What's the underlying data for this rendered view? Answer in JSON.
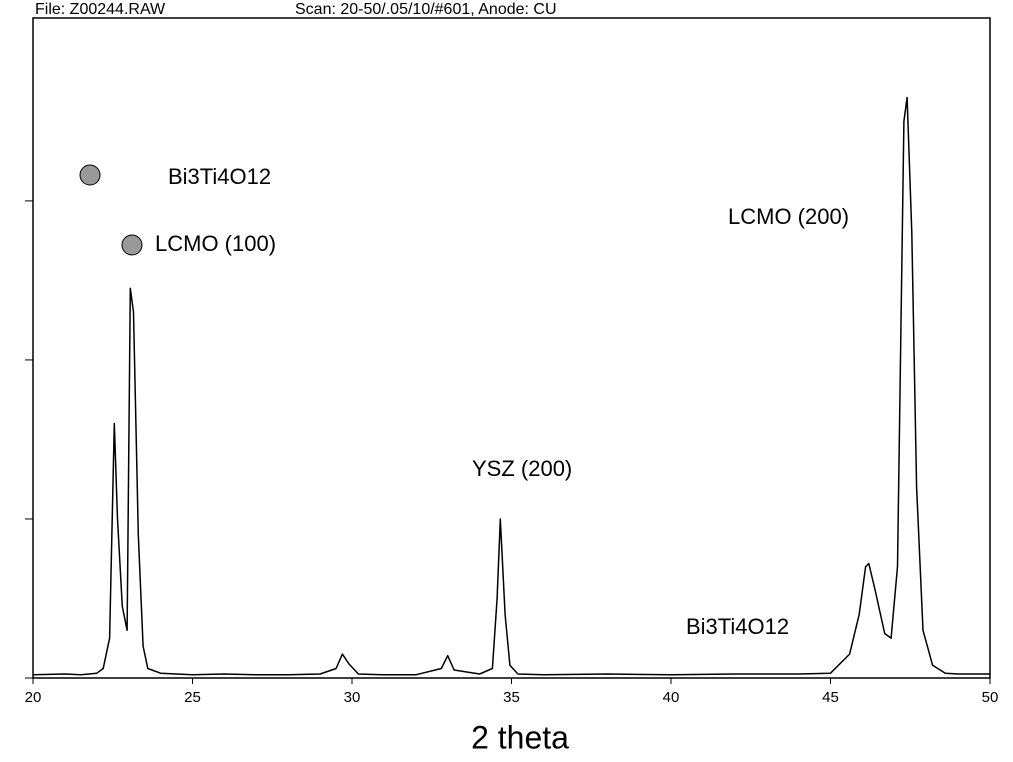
{
  "chart_data": {
    "type": "line",
    "header": [
      "File: Z00244.RAW",
      "Scan: 20-50/.05/10/#601, Anode: CU"
    ],
    "xlabel": "2 theta",
    "annotations": [
      "Bi3Ti4O12",
      "LCMO (100)",
      "LCMO (200)",
      "YSZ (200)",
      "Bi3Ti4O12"
    ],
    "x": [
      20,
      21,
      21.5,
      22,
      22.2,
      22.4,
      22.55,
      22.65,
      22.8,
      22.95,
      23.05,
      23.15,
      23.3,
      23.45,
      23.6,
      24,
      25,
      26,
      27,
      28,
      29,
      29.5,
      29.7,
      29.9,
      30.2,
      31,
      32,
      32.8,
      33,
      33.2,
      34,
      34.4,
      34.55,
      34.65,
      34.8,
      34.95,
      35.2,
      36,
      38,
      40,
      42,
      44,
      45,
      45.6,
      45.9,
      46.1,
      46.2,
      46.4,
      46.7,
      46.9,
      47.1,
      47.3,
      47.4,
      47.55,
      47.7,
      47.9,
      48.2,
      48.6,
      49,
      50
    ],
    "series": [
      {
        "color": "#000000",
        "values": [
          20,
          25,
          20,
          30,
          60,
          250,
          1600,
          1000,
          450,
          300,
          2450,
          2300,
          900,
          200,
          60,
          30,
          20,
          25,
          20,
          20,
          25,
          60,
          150,
          90,
          25,
          20,
          20,
          60,
          140,
          50,
          25,
          60,
          500,
          1000,
          400,
          80,
          25,
          20,
          25,
          20,
          25,
          25,
          30,
          150,
          400,
          700,
          720,
          550,
          280,
          250,
          700,
          3500,
          3650,
          2800,
          1200,
          300,
          80,
          30,
          25,
          25
        ]
      }
    ],
    "xlim": [
      20,
      50
    ],
    "xticks": [
      20,
      25,
      30,
      35,
      40,
      45,
      50
    ],
    "ylim": [
      0,
      4150
    ],
    "yticks": [
      0,
      1000,
      2000,
      3000
    ]
  }
}
